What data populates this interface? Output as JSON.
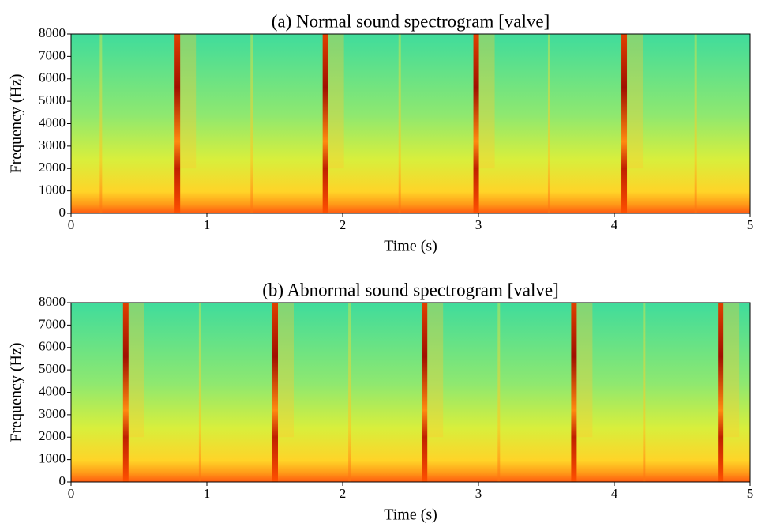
{
  "chart_data": [
    {
      "type": "spectrogram",
      "title": "(a) Normal sound spectrogram [valve]",
      "xlabel": "Time (s)",
      "ylabel": "Frequency (Hz)",
      "xlim": [
        0,
        5
      ],
      "xticks": [
        0,
        1,
        2,
        3,
        4,
        5
      ],
      "ylim": [
        0,
        8000
      ],
      "yticks": [
        0,
        1000,
        2000,
        3000,
        4000,
        5000,
        6000,
        7000,
        8000
      ],
      "strong_events": [
        0.78,
        1.87,
        2.98,
        4.07
      ],
      "weak_events": [
        0.22,
        1.33,
        2.42,
        3.52,
        4.6
      ]
    },
    {
      "type": "spectrogram",
      "title": "(b) Abnormal sound spectrogram [valve]",
      "xlabel": "Time (s)",
      "ylabel": "Frequency (Hz)",
      "xlim": [
        0,
        5
      ],
      "xticks": [
        0,
        1,
        2,
        3,
        4,
        5
      ],
      "ylim": [
        0,
        8000
      ],
      "yticks": [
        0,
        1000,
        2000,
        3000,
        4000,
        5000,
        6000,
        7000,
        8000
      ],
      "strong_events": [
        0.4,
        1.5,
        2.6,
        3.7,
        4.78
      ],
      "weak_events": [
        0.95,
        2.05,
        3.15,
        4.22
      ]
    }
  ]
}
